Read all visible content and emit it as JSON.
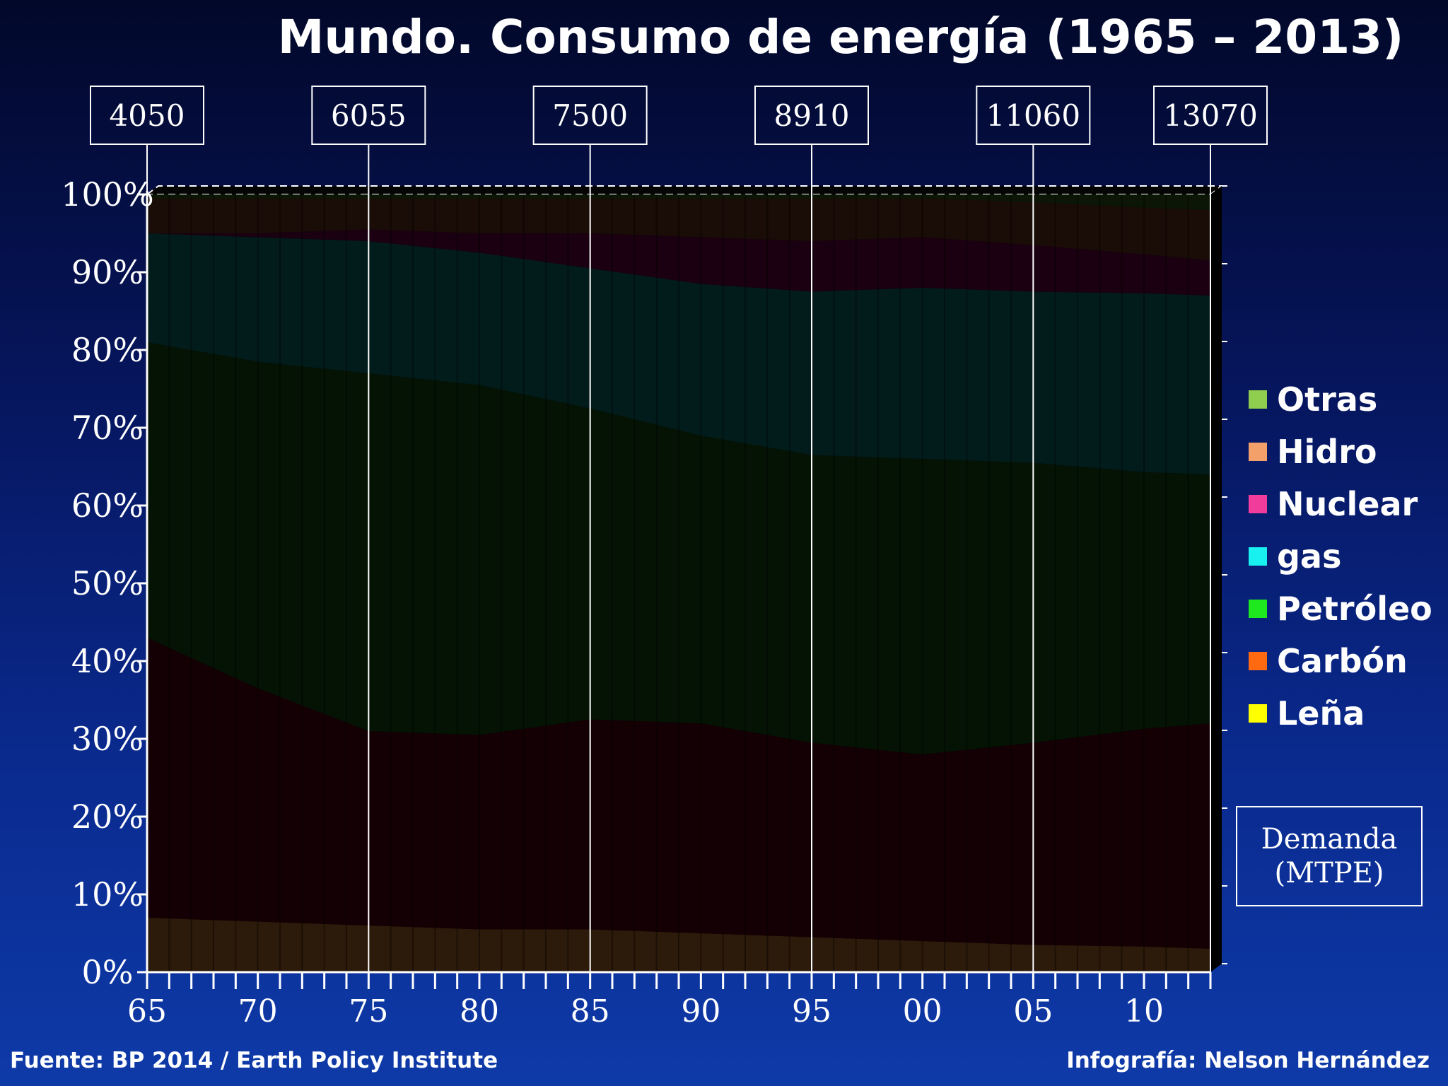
{
  "title": "Mundo.  Consumo de energía (1965 – 2013)",
  "footer": {
    "source": "Fuente:  BP 2014 / Earth Policy Institute",
    "credit": "Infografía: Nelson Hernández"
  },
  "demand_box": {
    "line1": "Demanda",
    "line2": "(MTPE)"
  },
  "legend": [
    {
      "label": "Otras",
      "color": "#8fce4f"
    },
    {
      "label": "Hidro",
      "color": "#f4a06a"
    },
    {
      "label": "Nuclear",
      "color": "#f23c9b"
    },
    {
      "label": "gas",
      "color": "#19f0f0"
    },
    {
      "label": "Petróleo",
      "color": "#1ee81e"
    },
    {
      "label": "Carbón",
      "color": "#ff6a10"
    },
    {
      "label": "Leña",
      "color": "#ffff00"
    }
  ],
  "chart_data": {
    "type": "area",
    "stacked": true,
    "percent": true,
    "title": "Mundo.  Consumo de energía (1965 – 2013)",
    "x": [
      1965,
      1970,
      1975,
      1980,
      1985,
      1990,
      1995,
      2000,
      2005,
      2010,
      2013
    ],
    "x_range": [
      1965,
      2013
    ],
    "x_tick_labels": [
      "65",
      "70",
      "75",
      "80",
      "85",
      "90",
      "95",
      "00",
      "05",
      "10"
    ],
    "x_tick_years": [
      1965,
      1970,
      1975,
      1980,
      1985,
      1990,
      1995,
      2000,
      2005,
      2010
    ],
    "ylim": [
      0,
      100
    ],
    "y_tick_labels": [
      "0%",
      "10%",
      "20%",
      "30%",
      "40%",
      "50%",
      "60%",
      "70%",
      "80%",
      "90%",
      "100%"
    ],
    "series": [
      {
        "name": "Leña",
        "color": "#2c1a0a",
        "values": [
          7,
          6.5,
          6,
          5.5,
          5.5,
          5,
          4.5,
          4,
          3.5,
          3.3,
          3
        ]
      },
      {
        "name": "Carbón",
        "color": "#140004",
        "values": [
          36,
          30,
          25,
          25,
          27,
          27,
          25,
          24,
          26,
          28,
          29
        ]
      },
      {
        "name": "Petróleo",
        "color": "#041304",
        "values": [
          38,
          42,
          46,
          45,
          40,
          37,
          37,
          38,
          36,
          33,
          32
        ]
      },
      {
        "name": "gas",
        "color": "#021c1c",
        "values": [
          14,
          16,
          17,
          17,
          18,
          19.5,
          21,
          22,
          22,
          23,
          23
        ]
      },
      {
        "name": "Nuclear",
        "color": "#1a0010",
        "values": [
          0,
          0.5,
          1.5,
          2.5,
          4.5,
          6,
          6.5,
          6.5,
          6,
          5,
          4.5
        ]
      },
      {
        "name": "Hidro",
        "color": "#1a0c06",
        "values": [
          4.5,
          4.5,
          4,
          4.5,
          4.5,
          5,
          5.5,
          5,
          5.5,
          6,
          6.5
        ]
      },
      {
        "name": "Otras",
        "color": "#0c1606",
        "values": [
          0.5,
          0.5,
          0.5,
          0.5,
          0.5,
          0.5,
          0.5,
          0.5,
          1,
          1.7,
          2
        ]
      }
    ],
    "demand_callouts": [
      {
        "year": 1965,
        "value": "4050"
      },
      {
        "year": 1975,
        "value": "6055"
      },
      {
        "year": 1985,
        "value": "7500"
      },
      {
        "year": 1995,
        "value": "8910"
      },
      {
        "year": 2005,
        "value": "11060"
      },
      {
        "year": 2013,
        "value": "13070"
      }
    ]
  }
}
